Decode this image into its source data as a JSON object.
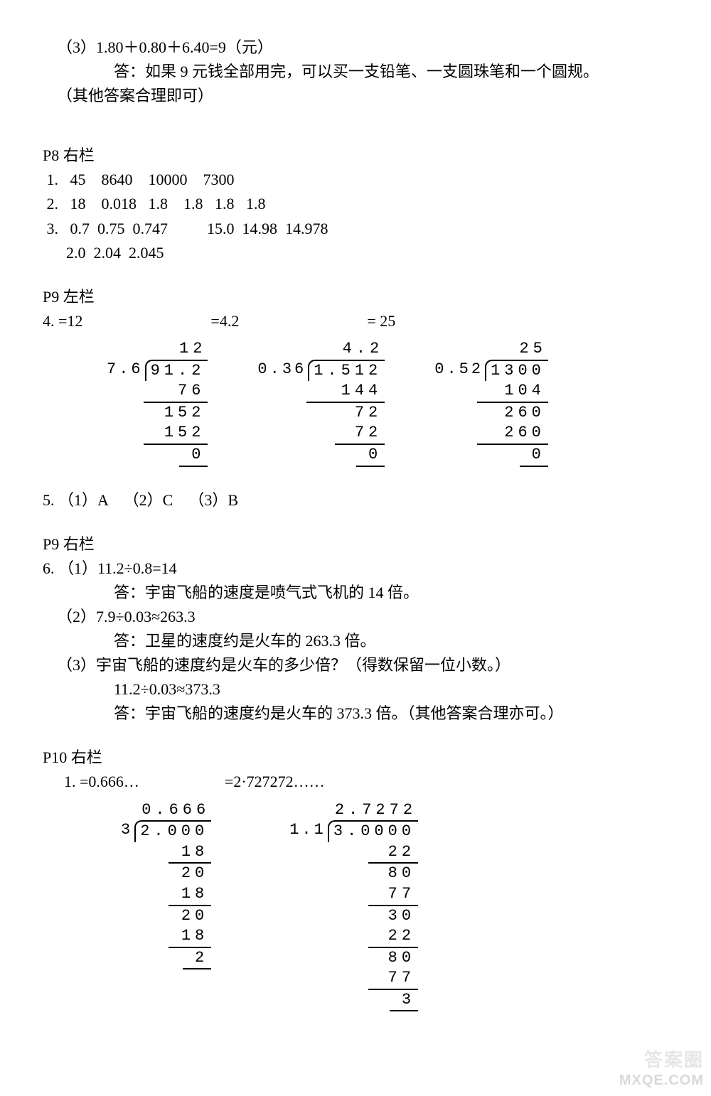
{
  "top": {
    "line1": "（3）1.80＋0.80＋6.40=9（元）",
    "line2": "答：如果 9 元钱全部用完，可以买一支铅笔、一支圆珠笔和一个圆规。",
    "line3": "（其他答案合理即可）"
  },
  "p8r": {
    "title": "P8 右栏",
    "row1": " 1.   45    8640    10000    7300",
    "row2": " 2.   18    0.018   1.8    1.8   1.8   1.8",
    "row3": " 3.   0.7  0.75  0.747          15.0  14.98  14.978",
    "row4": "      2.0  2.04  2.045"
  },
  "p9l": {
    "title": "P9 左栏",
    "a1": "4.        =12",
    "a2": "=4.2",
    "a3": "= 25",
    "calc1": {
      "divisor": "7.6",
      "dividend": "91.2",
      "quotient": "12",
      "steps": [
        "76",
        "152",
        "152",
        "0"
      ],
      "bars": [
        90,
        90,
        90,
        40
      ]
    },
    "calc2": {
      "divisor": "0.36",
      "dividend": "1.512",
      "quotient": "4.2",
      "steps": [
        "144",
        "72",
        "72",
        "0"
      ],
      "bars": [
        110,
        70,
        70,
        40
      ]
    },
    "calc3": {
      "divisor": "0.52",
      "dividend": "1300",
      "quotient": "25",
      "steps": [
        "104",
        "260",
        "260",
        "0"
      ],
      "bars": [
        100,
        100,
        100,
        40
      ]
    },
    "q5": "5. （1）A    （2）C    （3）B"
  },
  "p9r": {
    "title": "P9 右栏",
    "l1": "6. （1）11.2÷0.8=14",
    "l2": "答：宇宙飞船的速度是喷气式飞机的 14 倍。",
    "l3": "（2）7.9÷0.03≈263.3",
    "l4": "答：卫星的速度约是火车的 263.3 倍。",
    "l5": "（3）宇宙飞船的速度约是火车的多少倍？（得数保留一位小数。）",
    "l6": "11.2÷0.03≈373.3",
    "l7": "答：宇宙飞船的速度约是火车的 373.3 倍。（其他答案合理亦可。）"
  },
  "p10r": {
    "title": "P10 右栏",
    "a1": "1.    =0.666…",
    "a2": "=2·727272……",
    "calc1": {
      "divisor": "3",
      "dividend": "2.000",
      "quotient": "0.666",
      "steps": [
        "18",
        "20",
        "18",
        "20",
        "18",
        "2"
      ],
      "bars": [
        60,
        70,
        60,
        70,
        60,
        40
      ]
    },
    "calc2": {
      "divisor": "1.1",
      "dividend": "3.0000",
      "quotient": "2.7272",
      "steps": [
        "22",
        "80",
        "77",
        "30",
        "22",
        "80",
        "77",
        "3"
      ],
      "bars": [
        70,
        80,
        70,
        80,
        70,
        80,
        70,
        40
      ]
    }
  },
  "watermark": {
    "line1": "答案圈",
    "line2": "MXQE.COM"
  }
}
